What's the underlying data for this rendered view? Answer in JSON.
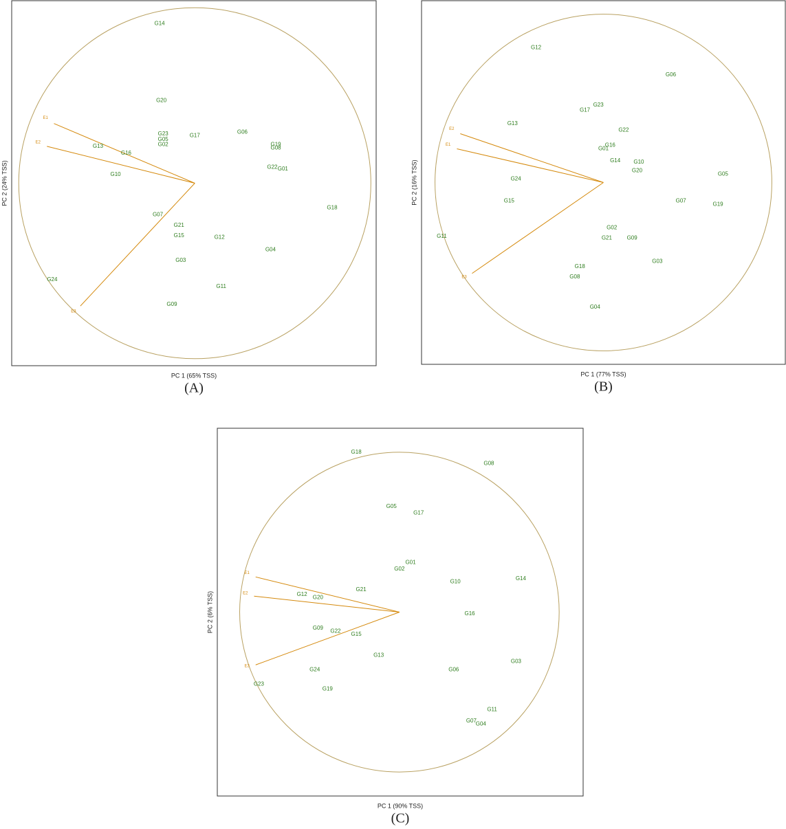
{
  "chart_data": [
    {
      "type": "biplot",
      "label": "(A)",
      "x_label": "PC 1 (65% TSS)",
      "y_label": "PC 2 (24% TSS)",
      "xlim": [
        -1.04,
        1.03
      ],
      "ylim": [
        -1.04,
        1.04
      ],
      "points": {
        "color": "#2e7d1e",
        "labels": [
          "G14",
          "G20",
          "G23",
          "G05",
          "G02",
          "G17",
          "G06",
          "G19",
          "G08",
          "G22",
          "G01",
          "G13",
          "G16",
          "G10",
          "G18",
          "G07",
          "G21",
          "G15",
          "G12",
          "G04",
          "G03",
          "G11",
          "G09",
          "G24"
        ],
        "x": [
          -0.2,
          -0.19,
          -0.18,
          -0.18,
          -0.18,
          0.0,
          0.27,
          0.46,
          0.46,
          0.44,
          0.5,
          -0.55,
          -0.39,
          -0.45,
          0.78,
          -0.21,
          -0.09,
          -0.09,
          0.14,
          0.43,
          -0.08,
          0.15,
          -0.13,
          -0.81
        ],
        "y": [
          0.91,
          0.47,
          0.28,
          0.25,
          0.22,
          0.27,
          0.29,
          0.22,
          0.2,
          0.09,
          0.08,
          0.21,
          0.17,
          0.05,
          -0.14,
          -0.18,
          -0.24,
          -0.3,
          -0.31,
          -0.38,
          -0.44,
          -0.59,
          -0.69,
          -0.55
        ]
      },
      "vectors": {
        "color": "#d4880a",
        "labels": [
          "E1",
          "E2",
          "E3"
        ],
        "x": [
          -0.8,
          -0.84,
          -0.65
        ],
        "y": [
          0.34,
          0.21,
          -0.7
        ]
      }
    },
    {
      "type": "biplot",
      "label": "(B)",
      "x_label": "PC 1 (77% TSS)",
      "y_label": "PC 2 (16% TSS)",
      "xlim": [
        -1.08,
        1.08
      ],
      "ylim": [
        -1.08,
        1.08
      ],
      "points": {
        "color": "#2e7d1e",
        "labels": [
          "G12",
          "G06",
          "G23",
          "G17",
          "G13",
          "G22",
          "G16",
          "G01",
          "G14",
          "G10",
          "G20",
          "G05",
          "G24",
          "G15",
          "G07",
          "G19",
          "G11",
          "G02",
          "G21",
          "G09",
          "G03",
          "G18",
          "G08",
          "G04"
        ],
        "x": [
          -0.4,
          0.4,
          -0.03,
          -0.11,
          -0.54,
          0.12,
          0.04,
          0.0,
          0.07,
          0.21,
          0.2,
          0.71,
          -0.52,
          -0.56,
          0.46,
          0.68,
          -0.96,
          0.05,
          0.02,
          0.17,
          0.32,
          -0.14,
          -0.17,
          -0.05
        ],
        "y": [
          0.8,
          0.64,
          0.46,
          0.43,
          0.35,
          0.31,
          0.22,
          0.2,
          0.13,
          0.12,
          0.07,
          0.05,
          0.02,
          -0.11,
          -0.11,
          -0.13,
          -0.32,
          -0.27,
          -0.33,
          -0.33,
          -0.47,
          -0.5,
          -0.56,
          -0.74
        ]
      },
      "vectors": {
        "color": "#d4880a",
        "labels": [
          "E2",
          "E1",
          "E3"
        ],
        "x": [
          -0.85,
          -0.87,
          -0.78
        ],
        "y": [
          0.29,
          0.2,
          -0.54
        ]
      }
    },
    {
      "type": "biplot",
      "label": "(C)",
      "x_label": "PC 1 (90% TSS)",
      "y_label": "PC 2 (6% TSS)",
      "xlim": [
        -1.14,
        1.15
      ],
      "ylim": [
        -1.15,
        1.15
      ],
      "points": {
        "color": "#2e7d1e",
        "labels": [
          "G18",
          "G08",
          "G05",
          "G17",
          "G01",
          "G02",
          "G10",
          "G14",
          "G21",
          "G12",
          "G20",
          "G16",
          "G09",
          "G22",
          "G15",
          "G13",
          "G03",
          "G24",
          "G06",
          "G23",
          "G19",
          "G11",
          "G07",
          "G04"
        ],
        "x": [
          -0.27,
          0.56,
          -0.05,
          0.12,
          0.07,
          0.0,
          0.35,
          0.76,
          -0.24,
          -0.61,
          -0.51,
          0.44,
          -0.51,
          -0.4,
          -0.27,
          -0.13,
          0.73,
          -0.53,
          0.34,
          -0.88,
          -0.45,
          0.58,
          0.45,
          0.51
        ],
        "y": [
          1.0,
          0.93,
          0.66,
          0.62,
          0.31,
          0.27,
          0.19,
          0.21,
          0.14,
          0.11,
          0.09,
          -0.01,
          -0.1,
          -0.12,
          -0.14,
          -0.27,
          -0.31,
          -0.36,
          -0.36,
          -0.45,
          -0.48,
          -0.61,
          -0.68,
          -0.7
        ]
      },
      "vectors": {
        "color": "#d4880a",
        "labels": [
          "E1",
          "E2",
          "E3"
        ],
        "x": [
          -0.9,
          -0.91,
          -0.9
        ],
        "y": [
          0.22,
          0.1,
          -0.33
        ]
      }
    }
  ]
}
